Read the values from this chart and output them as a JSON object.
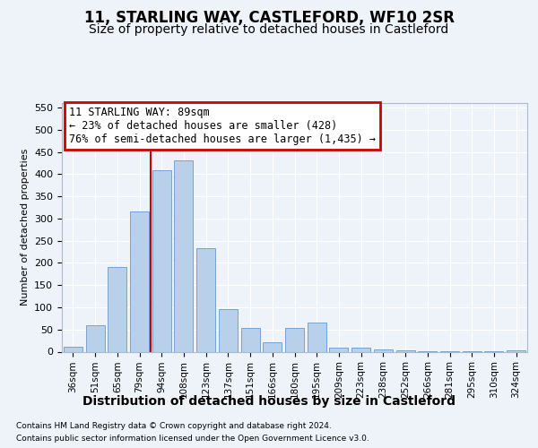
{
  "title1": "11, STARLING WAY, CASTLEFORD, WF10 2SR",
  "title2": "Size of property relative to detached houses in Castleford",
  "xlabel": "Distribution of detached houses by size in Castleford",
  "ylabel": "Number of detached properties",
  "categories": [
    "36sqm",
    "51sqm",
    "65sqm",
    "79sqm",
    "94sqm",
    "108sqm",
    "123sqm",
    "137sqm",
    "151sqm",
    "166sqm",
    "180sqm",
    "195sqm",
    "209sqm",
    "223sqm",
    "238sqm",
    "252sqm",
    "266sqm",
    "281sqm",
    "295sqm",
    "310sqm",
    "324sqm"
  ],
  "values": [
    12,
    60,
    190,
    315,
    408,
    430,
    233,
    95,
    53,
    22,
    53,
    65,
    10,
    10,
    6,
    3,
    2,
    1,
    1,
    1,
    4
  ],
  "bar_color": "#b8d0ea",
  "bar_edge_color": "#6699cc",
  "vline_color": "#cc0000",
  "vline_index": 3.5,
  "annotation_line1": "11 STARLING WAY: 89sqm",
  "annotation_line2": "← 23% of detached houses are smaller (428)",
  "annotation_line3": "76% of semi-detached houses are larger (1,435) →",
  "annotation_box_facecolor": "#ffffff",
  "annotation_box_edgecolor": "#cc0000",
  "ylim_max": 560,
  "yticks": [
    0,
    50,
    100,
    150,
    200,
    250,
    300,
    350,
    400,
    450,
    500,
    550
  ],
  "footer1": "Contains HM Land Registry data © Crown copyright and database right 2024.",
  "footer2": "Contains public sector information licensed under the Open Government Licence v3.0.",
  "bg_color": "#eef3fa",
  "grid_color": "#ffffff",
  "title1_fontsize": 12,
  "title2_fontsize": 10,
  "ylabel_fontsize": 8,
  "xlabel_fontsize": 10,
  "tick_fontsize": 8,
  "xtick_fontsize": 7.5,
  "footer_fontsize": 6.5,
  "ann_fontsize": 8.5
}
